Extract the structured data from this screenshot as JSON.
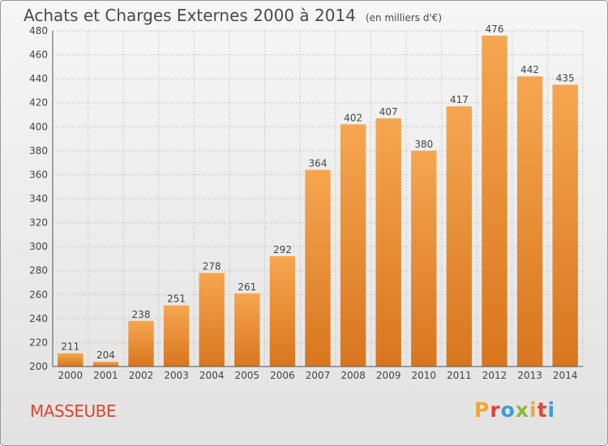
{
  "header": {
    "title": "Achats et Charges Externes 2000 à 2014",
    "unit": "(en milliers d'€)"
  },
  "footer": {
    "town": "MASSEUBE",
    "logo_text": "Proxiti"
  },
  "colors": {
    "bar_light": "#f6a650",
    "bar_dark": "#d8761e",
    "grid": "#c9c9c9",
    "axis": "#555555",
    "text": "#444444",
    "town": "#e0442e"
  },
  "chart_data": {
    "type": "bar",
    "title": "Achats et Charges Externes 2000 à 2014",
    "subtitle": "(en milliers d'€)",
    "xlabel": "",
    "ylabel": "",
    "categories": [
      "2000",
      "2001",
      "2002",
      "2003",
      "2004",
      "2005",
      "2006",
      "2007",
      "2008",
      "2009",
      "2010",
      "2011",
      "2012",
      "2013",
      "2014"
    ],
    "values": [
      211,
      204,
      238,
      251,
      278,
      261,
      292,
      364,
      402,
      407,
      380,
      417,
      476,
      442,
      435
    ],
    "ylim": [
      200,
      480
    ],
    "yticks": [
      200,
      220,
      240,
      260,
      280,
      300,
      320,
      340,
      360,
      380,
      400,
      420,
      440,
      460,
      480
    ],
    "grid": true,
    "data_labels": true
  }
}
